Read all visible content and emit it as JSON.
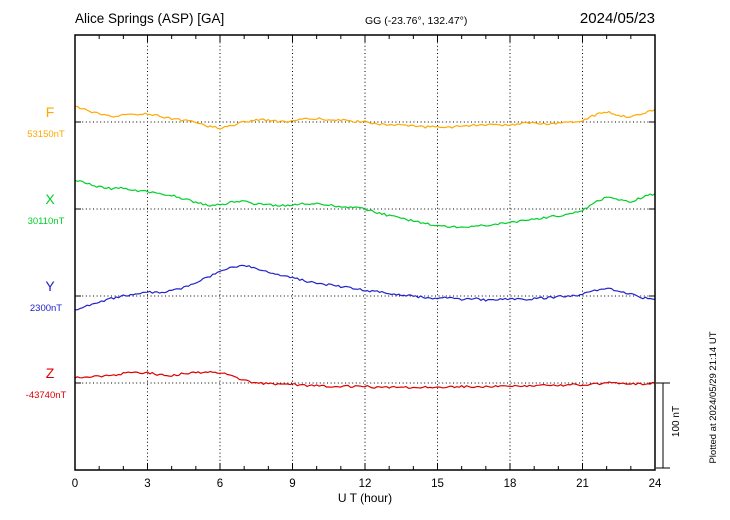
{
  "chart_data": {
    "type": "line",
    "title": "Alice Springs (ASP)  [GA]",
    "subtitle": "GG (-23.76°, 132.47°)",
    "date": "2024/05/23",
    "xlabel": "U T (hour)",
    "x_range": [
      0,
      24
    ],
    "x_ticks": [
      0,
      3,
      6,
      9,
      12,
      15,
      18,
      21,
      24
    ],
    "grid": "dotted vertical lines every 3 hours, dotted baseline per channel",
    "sample_step_hours": 0.5,
    "scale_bar": {
      "label": "100 nT",
      "nT": 100
    },
    "plotted_note": "Plotted at 2024/05/29 21:14 UT",
    "series": [
      {
        "name": "F",
        "baseline_label": "53150nT",
        "color": "#ffa800",
        "offsets_nT": [
          18,
          14,
          9,
          6,
          8,
          9,
          10,
          7,
          4,
          2,
          0,
          -5,
          -7,
          -4,
          0,
          3,
          2,
          0,
          1,
          3,
          4,
          3,
          2,
          1,
          0,
          -2,
          -3,
          -4,
          -5,
          -6,
          -5,
          -6,
          -5,
          -4,
          -3,
          -4,
          -3,
          -2,
          -1,
          -2,
          -1,
          0,
          2,
          8,
          12,
          8,
          6,
          10,
          15
        ]
      },
      {
        "name": "X",
        "baseline_label": "30110nT",
        "color": "#00d02a",
        "offsets_nT": [
          34,
          30,
          26,
          24,
          25,
          22,
          20,
          18,
          16,
          12,
          8,
          4,
          5,
          8,
          9,
          6,
          5,
          4,
          5,
          6,
          7,
          5,
          3,
          2,
          0,
          -4,
          -8,
          -11,
          -14,
          -17,
          -19,
          -21,
          -22,
          -21,
          -19,
          -18,
          -16,
          -14,
          -12,
          -10,
          -8,
          -6,
          -2,
          8,
          14,
          10,
          9,
          14,
          18
        ]
      },
      {
        "name": "Y",
        "baseline_label": "2300nT",
        "color": "#2222cc",
        "offsets_nT": [
          -16,
          -12,
          -8,
          -3,
          0,
          3,
          5,
          4,
          6,
          10,
          16,
          22,
          28,
          34,
          36,
          33,
          28,
          24,
          21,
          18,
          15,
          13,
          11,
          9,
          7,
          5,
          3,
          1,
          0,
          -2,
          -3,
          -2,
          -4,
          -3,
          -5,
          -4,
          -3,
          -4,
          -3,
          -2,
          -1,
          0,
          2,
          7,
          9,
          5,
          2,
          -2,
          -4
        ]
      },
      {
        "name": "Z",
        "baseline_label": "-43740nT",
        "color": "#dd0000",
        "offsets_nT": [
          6,
          7,
          8,
          9,
          11,
          13,
          12,
          10,
          9,
          11,
          12,
          13,
          12,
          8,
          3,
          0,
          -1,
          -2,
          -2,
          -3,
          -3,
          -4,
          -4,
          -4,
          -4,
          -5,
          -5,
          -5,
          -5,
          -5,
          -5,
          -5,
          -4,
          -4,
          -4,
          -4,
          -4,
          -3,
          -3,
          -3,
          -3,
          -2,
          -2,
          -1,
          0,
          0,
          -1,
          -1,
          0
        ]
      }
    ]
  }
}
